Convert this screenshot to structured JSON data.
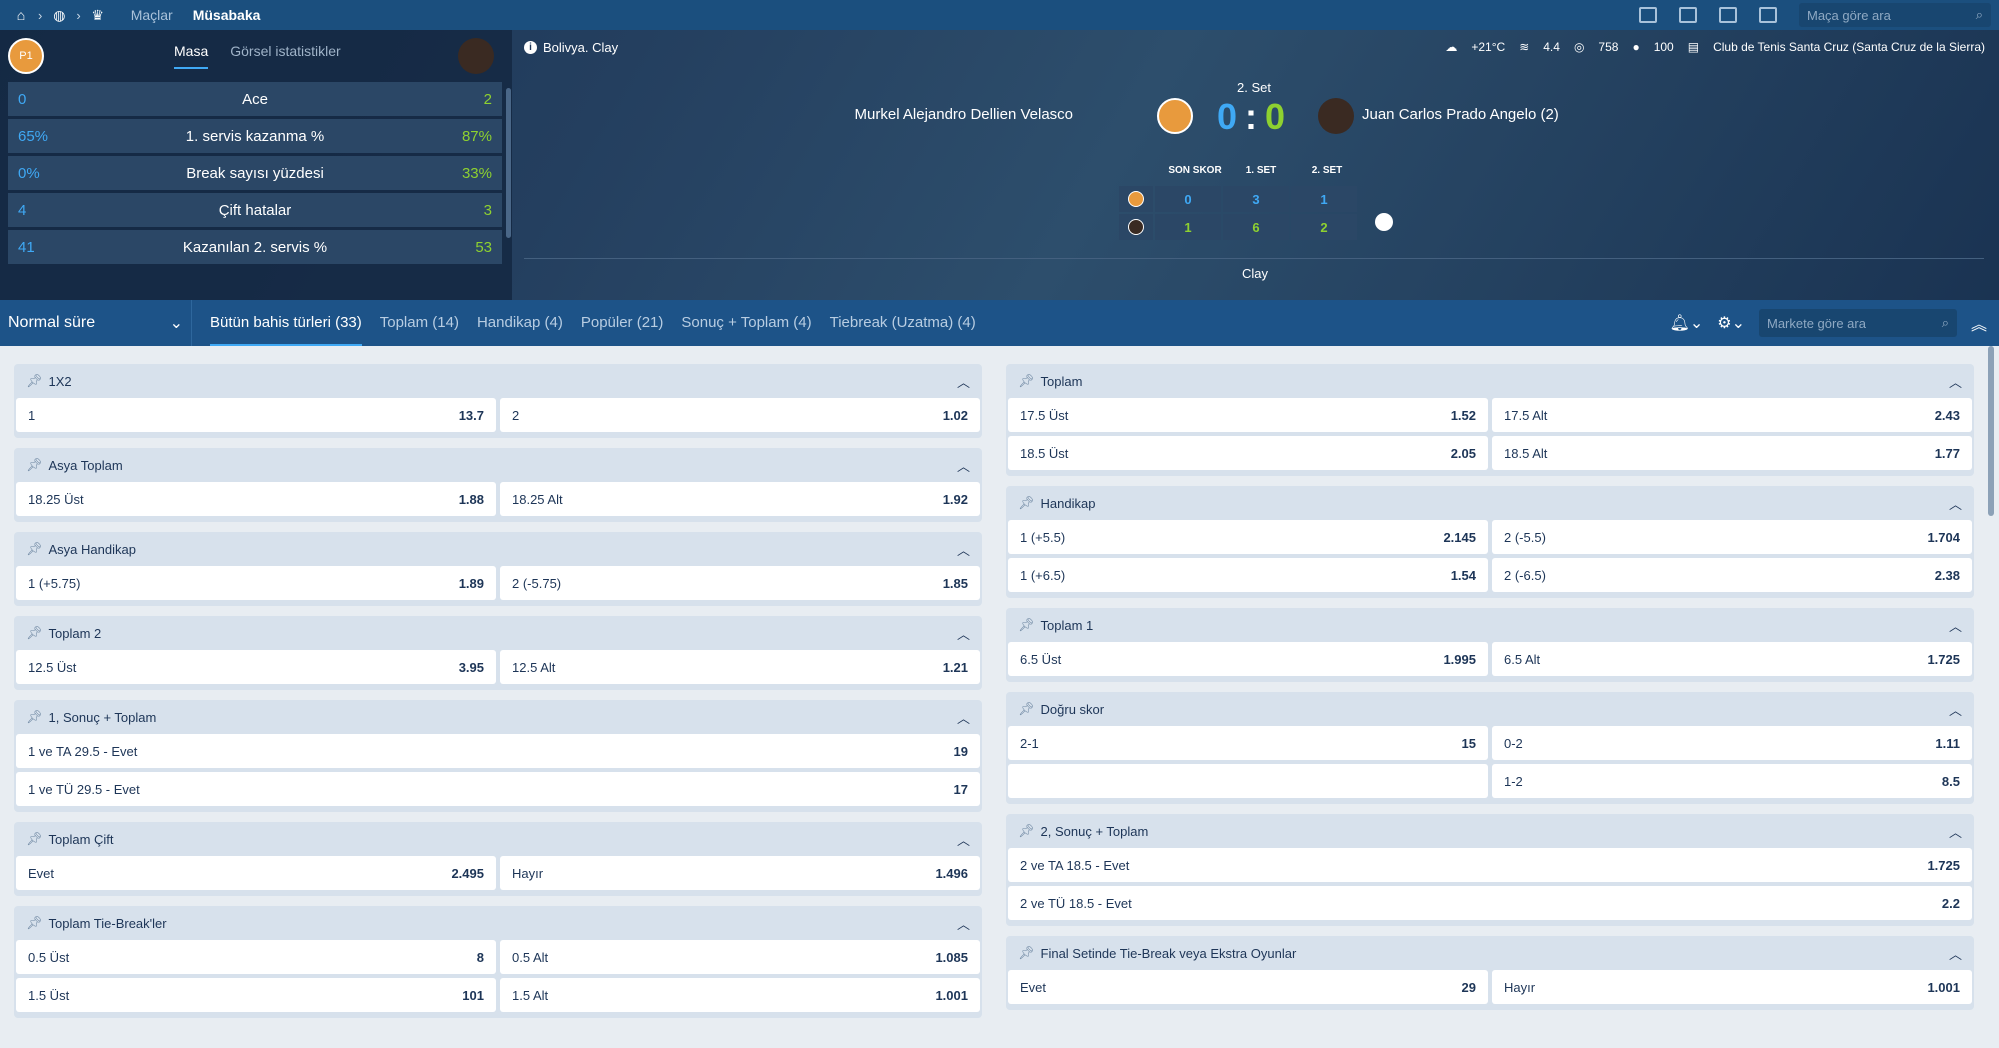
{
  "topbar": {
    "icons": [
      "home-icon",
      "tennis-ball-icon",
      "trophy-icon"
    ],
    "nav": [
      "Maçlar",
      "Müsabaka"
    ],
    "search_placeholder": "Maça göre ara"
  },
  "stats": {
    "tabs": [
      "Masa",
      "Görsel istatistikler"
    ],
    "rows": [
      {
        "l": "0",
        "m": "Ace",
        "r": "2"
      },
      {
        "l": "65%",
        "m": "1. servis kazanma %",
        "r": "87%"
      },
      {
        "l": "0%",
        "m": "Break sayısı yüzdesi",
        "r": "33%"
      },
      {
        "l": "4",
        "m": "Çift hatalar",
        "r": "3"
      },
      {
        "l": "41",
        "m": "Kazanılan 2. servis %",
        "r": "53"
      }
    ]
  },
  "match": {
    "info": "Bolivya. Clay",
    "weather": {
      "temp": "+21°C",
      "wind": "4.4",
      "pressure": "758",
      "humidity": "100",
      "venue": "Club de Tenis Santa Cruz (Santa Cruz de la Sierra)"
    },
    "set_label": "2. Set",
    "player1": "Murkel Alejandro Dellien Velasco",
    "player2": "Juan Carlos Prado Angelo (2)",
    "score1": "0",
    "score_sep": ":",
    "score2": "0",
    "sb_headers": [
      "SON SKOR",
      "1. SET",
      "2. SET"
    ],
    "sb_p1": [
      "0",
      "3",
      "1"
    ],
    "sb_p2": [
      "1",
      "6",
      "2"
    ],
    "surface": "Clay"
  },
  "filter": {
    "period": "Normal süre",
    "tabs": [
      "Bütün bahis türleri (33)",
      "Toplam (14)",
      "Handikap (4)",
      "Popüler (21)",
      "Sonuç + Toplam (4)",
      "Tiebreak (Uzatma) (4)"
    ],
    "search_placeholder": "Markete göre ara"
  },
  "left_markets": [
    {
      "title": "1X2",
      "rows": [
        [
          {
            "n": "1",
            "o": "13.7"
          },
          {
            "n": "2",
            "o": "1.02"
          }
        ]
      ]
    },
    {
      "title": "Asya Toplam",
      "rows": [
        [
          {
            "n": "18.25 Üst",
            "o": "1.88"
          },
          {
            "n": "18.25 Alt",
            "o": "1.92"
          }
        ]
      ]
    },
    {
      "title": "Asya Handikap",
      "rows": [
        [
          {
            "n": "1 (+5.75)",
            "o": "1.89"
          },
          {
            "n": "2 (-5.75)",
            "o": "1.85"
          }
        ]
      ]
    },
    {
      "title": "Toplam 2",
      "rows": [
        [
          {
            "n": "12.5 Üst",
            "o": "3.95"
          },
          {
            "n": "12.5 Alt",
            "o": "1.21"
          }
        ]
      ]
    },
    {
      "title": "1, Sonuç + Toplam",
      "rows": [
        [
          {
            "n": "1 ve TA 29.5 - Evet",
            "o": "19"
          }
        ],
        [
          {
            "n": "1 ve TÜ 29.5 - Evet",
            "o": "17"
          }
        ]
      ]
    },
    {
      "title": "Toplam Çift",
      "rows": [
        [
          {
            "n": "Evet",
            "o": "2.495"
          },
          {
            "n": "Hayır",
            "o": "1.496"
          }
        ]
      ]
    },
    {
      "title": "Toplam Tie-Break'ler",
      "rows": [
        [
          {
            "n": "0.5 Üst",
            "o": "8"
          },
          {
            "n": "0.5 Alt",
            "o": "1.085"
          }
        ],
        [
          {
            "n": "1.5 Üst",
            "o": "101"
          },
          {
            "n": "1.5 Alt",
            "o": "1.001"
          }
        ]
      ]
    }
  ],
  "right_markets": [
    {
      "title": "Toplam",
      "rows": [
        [
          {
            "n": "17.5 Üst",
            "o": "1.52"
          },
          {
            "n": "17.5 Alt",
            "o": "2.43"
          }
        ],
        [
          {
            "n": "18.5 Üst",
            "o": "2.05"
          },
          {
            "n": "18.5 Alt",
            "o": "1.77"
          }
        ]
      ]
    },
    {
      "title": "Handikap",
      "rows": [
        [
          {
            "n": "1 (+5.5)",
            "o": "2.145"
          },
          {
            "n": "2 (-5.5)",
            "o": "1.704"
          }
        ],
        [
          {
            "n": "1 (+6.5)",
            "o": "1.54"
          },
          {
            "n": "2 (-6.5)",
            "o": "2.38"
          }
        ]
      ]
    },
    {
      "title": "Toplam 1",
      "rows": [
        [
          {
            "n": "6.5 Üst",
            "o": "1.995"
          },
          {
            "n": "6.5 Alt",
            "o": "1.725"
          }
        ]
      ]
    },
    {
      "title": "Doğru skor",
      "rows": [
        [
          {
            "n": "2-1",
            "o": "15"
          },
          {
            "n": "0-2",
            "o": "1.11"
          }
        ],
        [
          {
            "n": "",
            "o": ""
          },
          {
            "n": "1-2",
            "o": "8.5"
          }
        ]
      ]
    },
    {
      "title": "2, Sonuç + Toplam",
      "rows": [
        [
          {
            "n": "2 ve TA 18.5 - Evet",
            "o": "1.725"
          }
        ],
        [
          {
            "n": "2 ve TÜ 18.5 - Evet",
            "o": "2.2"
          }
        ]
      ]
    },
    {
      "title": "Final Setinde Tie-Break veya Ekstra Oyunlar",
      "rows": [
        [
          {
            "n": "Evet",
            "o": "29"
          },
          {
            "n": "Hayır",
            "o": "1.001"
          }
        ]
      ]
    }
  ]
}
